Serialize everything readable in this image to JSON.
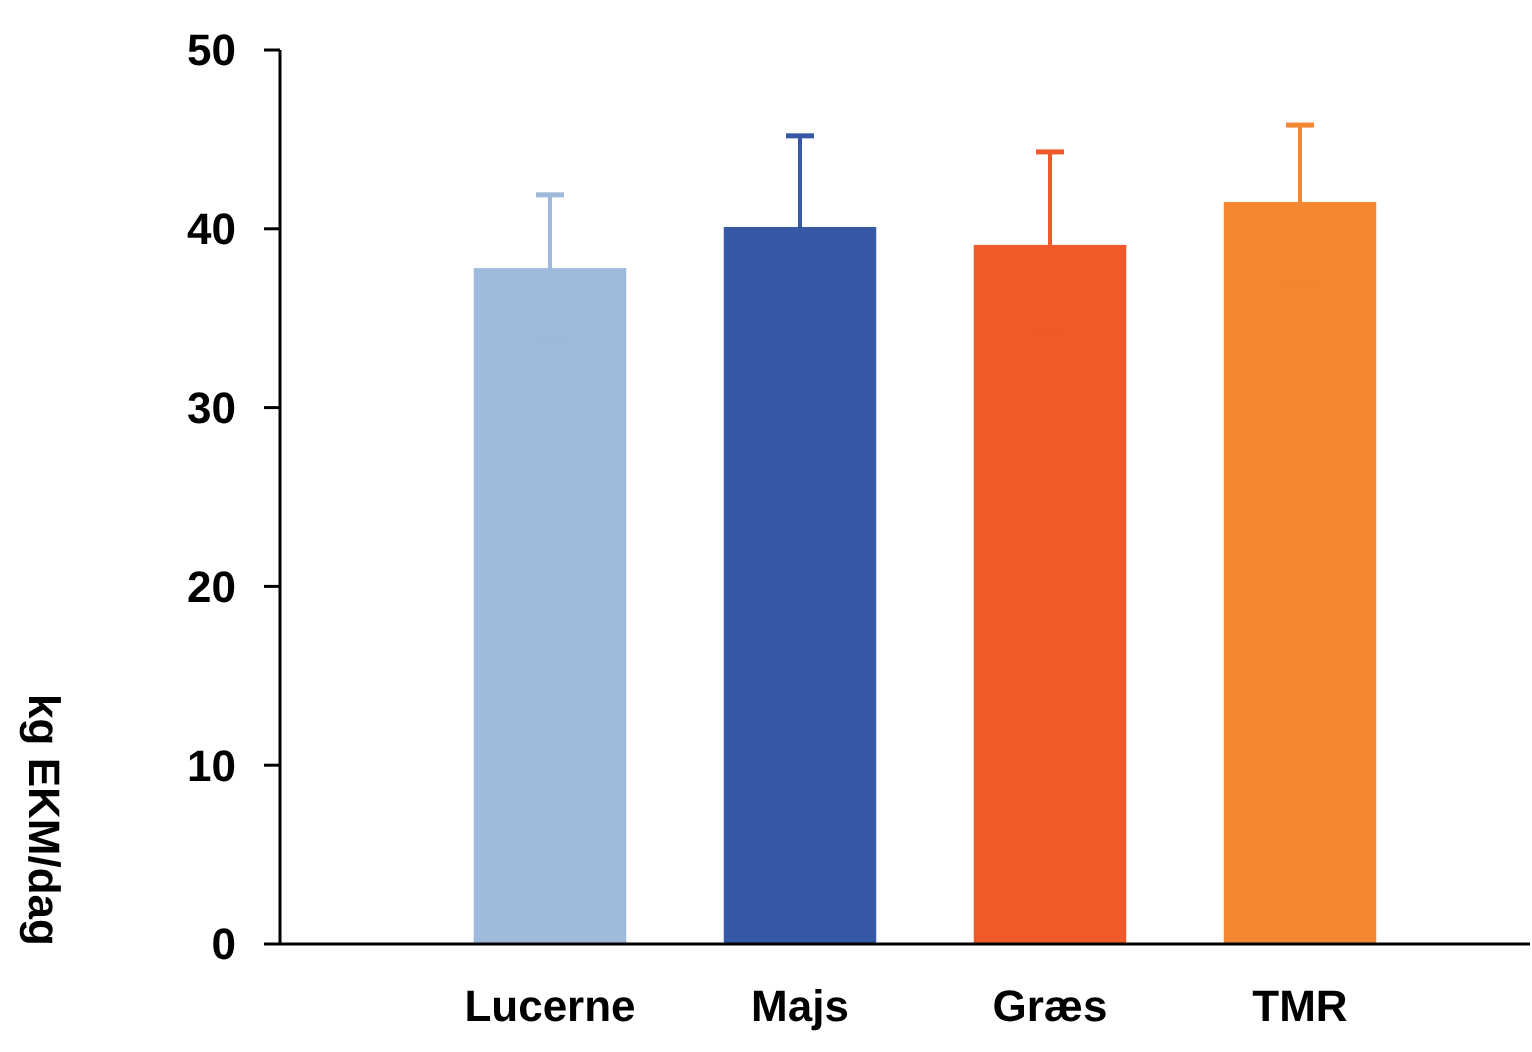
{
  "chart_data": {
    "type": "bar",
    "ylabel": "kg EKM/dag",
    "categories": [
      "Lucerne",
      "Majs",
      "Græs",
      "TMR"
    ],
    "values": [
      37.8,
      40.1,
      39.1,
      41.5
    ],
    "colors": [
      "#9db9db",
      "#3559a7",
      "#f05a28",
      "#f38631"
    ],
    "errors": [
      4.1,
      5.1,
      5.2,
      4.3
    ],
    "ylim": [
      0,
      50
    ],
    "yticks": [
      0,
      10,
      20,
      30,
      40,
      50
    ],
    "grid": false
  }
}
